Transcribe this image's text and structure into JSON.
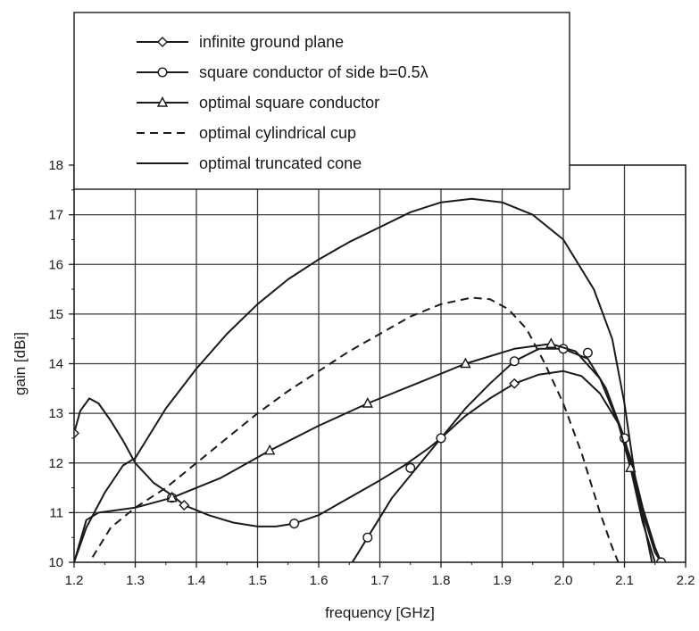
{
  "chart_data": {
    "type": "line",
    "xlabel": "frequency [GHz]",
    "ylabel": "gain [dBi]",
    "xlim": [
      1.2,
      2.2
    ],
    "ylim": [
      10,
      18
    ],
    "xticks": [
      "1.2",
      "1.3",
      "1.4",
      "1.5",
      "1.6",
      "1.7",
      "1.8",
      "1.9",
      "2.0",
      "2.1",
      "2.2"
    ],
    "yticks": [
      "10",
      "11",
      "12",
      "13",
      "14",
      "15",
      "16",
      "17",
      "18"
    ],
    "grid": true,
    "legend_position": "top-left",
    "series": [
      {
        "name": "infinite ground plane",
        "marker": "diamond",
        "dash": "solid",
        "points": [
          [
            1.2,
            12.6
          ],
          [
            1.21,
            13.05
          ],
          [
            1.225,
            13.3
          ],
          [
            1.24,
            13.2
          ],
          [
            1.26,
            12.85
          ],
          [
            1.28,
            12.45
          ],
          [
            1.3,
            12.0
          ],
          [
            1.33,
            11.6
          ],
          [
            1.36,
            11.35
          ],
          [
            1.38,
            11.15
          ],
          [
            1.42,
            10.95
          ],
          [
            1.46,
            10.8
          ],
          [
            1.5,
            10.72
          ],
          [
            1.53,
            10.72
          ],
          [
            1.56,
            10.78
          ],
          [
            1.6,
            10.95
          ],
          [
            1.65,
            11.3
          ],
          [
            1.7,
            11.65
          ],
          [
            1.74,
            11.95
          ],
          [
            1.78,
            12.3
          ],
          [
            1.8,
            12.5
          ],
          [
            1.84,
            12.95
          ],
          [
            1.88,
            13.3
          ],
          [
            1.92,
            13.6
          ],
          [
            1.96,
            13.78
          ],
          [
            2.0,
            13.85
          ],
          [
            2.03,
            13.75
          ],
          [
            2.06,
            13.4
          ],
          [
            2.09,
            12.8
          ],
          [
            2.11,
            12.1
          ],
          [
            2.13,
            11.1
          ],
          [
            2.15,
            10.3
          ],
          [
            2.16,
            10.0
          ]
        ],
        "markers": [
          [
            1.2,
            12.6
          ],
          [
            1.38,
            11.15
          ],
          [
            1.56,
            10.78
          ],
          [
            1.8,
            12.5
          ],
          [
            1.92,
            13.6
          ],
          [
            2.16,
            10.0
          ]
        ]
      },
      {
        "name": "square conductor of side b=0.5λ",
        "marker": "circle",
        "dash": "solid",
        "points": [
          [
            1.655,
            10.0
          ],
          [
            1.68,
            10.5
          ],
          [
            1.72,
            11.3
          ],
          [
            1.76,
            11.9
          ],
          [
            1.8,
            12.5
          ],
          [
            1.84,
            13.1
          ],
          [
            1.88,
            13.6
          ],
          [
            1.92,
            14.05
          ],
          [
            1.96,
            14.3
          ],
          [
            2.0,
            14.3
          ],
          [
            2.04,
            14.1
          ],
          [
            2.07,
            13.5
          ],
          [
            2.1,
            12.5
          ],
          [
            2.13,
            11.0
          ],
          [
            2.15,
            10.2
          ],
          [
            2.16,
            10.0
          ]
        ],
        "markers": [
          [
            1.36,
            11.3
          ],
          [
            1.56,
            10.78
          ],
          [
            1.68,
            10.5
          ],
          [
            1.75,
            11.9
          ],
          [
            1.8,
            12.5
          ],
          [
            1.92,
            14.05
          ],
          [
            2.0,
            14.3
          ],
          [
            2.04,
            14.22
          ],
          [
            2.1,
            12.5
          ],
          [
            2.16,
            10.0
          ]
        ]
      },
      {
        "name": "optimal square conductor",
        "marker": "triangle",
        "dash": "solid",
        "points": [
          [
            1.2,
            10.0
          ],
          [
            1.22,
            10.85
          ],
          [
            1.24,
            11.0
          ],
          [
            1.3,
            11.1
          ],
          [
            1.36,
            11.3
          ],
          [
            1.44,
            11.7
          ],
          [
            1.52,
            12.25
          ],
          [
            1.6,
            12.75
          ],
          [
            1.68,
            13.2
          ],
          [
            1.76,
            13.6
          ],
          [
            1.84,
            14.0
          ],
          [
            1.92,
            14.3
          ],
          [
            1.98,
            14.4
          ],
          [
            2.02,
            14.25
          ],
          [
            2.06,
            13.7
          ],
          [
            2.09,
            12.8
          ],
          [
            2.11,
            11.9
          ],
          [
            2.13,
            10.8
          ],
          [
            2.15,
            10.0
          ]
        ],
        "markers": [
          [
            1.36,
            11.3
          ],
          [
            1.52,
            12.25
          ],
          [
            1.68,
            13.2
          ],
          [
            1.84,
            14.0
          ],
          [
            1.98,
            14.4
          ],
          [
            2.11,
            11.9
          ]
        ]
      },
      {
        "name": "optimal cylindrical cup",
        "marker": "none",
        "dash": "dashed",
        "points": [
          [
            1.23,
            10.1
          ],
          [
            1.26,
            10.7
          ],
          [
            1.3,
            11.1
          ],
          [
            1.35,
            11.5
          ],
          [
            1.4,
            12.0
          ],
          [
            1.45,
            12.5
          ],
          [
            1.5,
            13.0
          ],
          [
            1.55,
            13.45
          ],
          [
            1.6,
            13.85
          ],
          [
            1.65,
            14.25
          ],
          [
            1.7,
            14.6
          ],
          [
            1.75,
            14.95
          ],
          [
            1.8,
            15.2
          ],
          [
            1.85,
            15.33
          ],
          [
            1.88,
            15.3
          ],
          [
            1.91,
            15.1
          ],
          [
            1.94,
            14.7
          ],
          [
            1.97,
            14.0
          ],
          [
            2.0,
            13.2
          ],
          [
            2.03,
            12.2
          ],
          [
            2.06,
            11.0
          ],
          [
            2.08,
            10.3
          ],
          [
            2.09,
            10.0
          ]
        ],
        "markers": []
      },
      {
        "name": "optimal truncated cone",
        "marker": "none",
        "dash": "solid",
        "points": [
          [
            1.2,
            10.0
          ],
          [
            1.22,
            10.7
          ],
          [
            1.25,
            11.4
          ],
          [
            1.28,
            11.95
          ],
          [
            1.3,
            12.1
          ],
          [
            1.35,
            13.1
          ],
          [
            1.4,
            13.9
          ],
          [
            1.45,
            14.6
          ],
          [
            1.5,
            15.2
          ],
          [
            1.55,
            15.7
          ],
          [
            1.6,
            16.1
          ],
          [
            1.65,
            16.45
          ],
          [
            1.7,
            16.75
          ],
          [
            1.75,
            17.05
          ],
          [
            1.8,
            17.25
          ],
          [
            1.85,
            17.32
          ],
          [
            1.9,
            17.25
          ],
          [
            1.95,
            17.0
          ],
          [
            2.0,
            16.5
          ],
          [
            2.05,
            15.5
          ],
          [
            2.08,
            14.5
          ],
          [
            2.1,
            13.2
          ],
          [
            2.12,
            11.5
          ],
          [
            2.14,
            10.3
          ],
          [
            2.145,
            10.0
          ]
        ],
        "markers": []
      }
    ]
  }
}
